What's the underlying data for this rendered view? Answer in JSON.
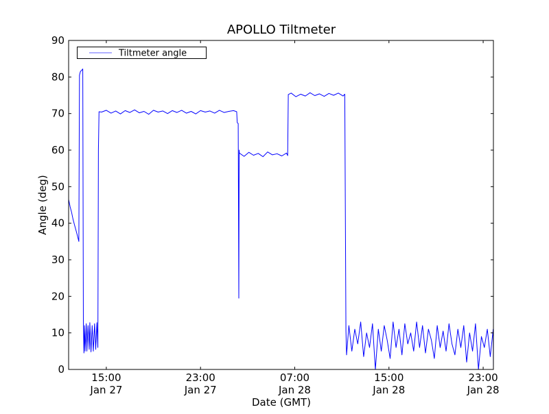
{
  "chart_data": {
    "type": "line",
    "title": "APOLLO Tiltmeter",
    "xlabel": "Date (GMT)",
    "ylabel": "Angle (deg)",
    "x_unit": "hours since Jan 27 00:00",
    "xlim": [
      11.8,
      47.87
    ],
    "ylim": [
      0,
      90
    ],
    "yticks": [
      0,
      10,
      20,
      30,
      40,
      50,
      60,
      70,
      80,
      90
    ],
    "xticks": [
      {
        "value": 15,
        "time": "15:00",
        "date": "Jan 27"
      },
      {
        "value": 23,
        "time": "23:00",
        "date": "Jan 27"
      },
      {
        "value": 31,
        "time": "07:00",
        "date": "Jan 28"
      },
      {
        "value": 39,
        "time": "15:00",
        "date": "Jan 28"
      },
      {
        "value": 47,
        "time": "23:00",
        "date": "Jan 28"
      }
    ],
    "grid": false,
    "legend": {
      "position": "top-left",
      "entries": [
        "Tiltmeter angle"
      ]
    },
    "series": [
      {
        "name": "Tiltmeter angle",
        "color": "#0000ff",
        "points": [
          [
            11.8,
            46.5
          ],
          [
            11.93,
            44.5
          ],
          [
            12.05,
            43
          ],
          [
            12.18,
            41
          ],
          [
            12.3,
            39.5
          ],
          [
            12.43,
            38
          ],
          [
            12.55,
            36.5
          ],
          [
            12.67,
            35
          ],
          [
            12.72,
            80.5
          ],
          [
            12.8,
            81.5
          ],
          [
            12.9,
            81.8
          ],
          [
            13.0,
            82.2
          ],
          [
            13.05,
            12
          ],
          [
            13.1,
            4.5
          ],
          [
            13.15,
            12
          ],
          [
            13.2,
            5
          ],
          [
            13.3,
            12.5
          ],
          [
            13.35,
            5
          ],
          [
            13.45,
            12
          ],
          [
            13.55,
            5.5
          ],
          [
            13.6,
            12.8
          ],
          [
            13.7,
            4.8
          ],
          [
            13.8,
            12
          ],
          [
            13.9,
            5
          ],
          [
            14.0,
            12.5
          ],
          [
            14.1,
            5.5
          ],
          [
            14.2,
            12.8
          ],
          [
            14.28,
            6
          ],
          [
            14.33,
            60
          ],
          [
            14.38,
            70.5
          ],
          [
            14.6,
            70.4
          ],
          [
            15.0,
            70.9
          ],
          [
            15.4,
            70.1
          ],
          [
            15.8,
            70.7
          ],
          [
            16.2,
            69.9
          ],
          [
            16.6,
            70.8
          ],
          [
            17.0,
            70.3
          ],
          [
            17.4,
            71.0
          ],
          [
            17.8,
            70.2
          ],
          [
            18.2,
            70.6
          ],
          [
            18.6,
            69.8
          ],
          [
            19.0,
            70.9
          ],
          [
            19.4,
            70.4
          ],
          [
            19.8,
            70.7
          ],
          [
            20.2,
            70.0
          ],
          [
            20.6,
            70.8
          ],
          [
            21.0,
            70.3
          ],
          [
            21.4,
            70.9
          ],
          [
            21.8,
            70.1
          ],
          [
            22.2,
            70.6
          ],
          [
            22.6,
            69.9
          ],
          [
            23.0,
            70.8
          ],
          [
            23.4,
            70.4
          ],
          [
            23.8,
            70.7
          ],
          [
            24.2,
            70.1
          ],
          [
            24.6,
            70.9
          ],
          [
            25.0,
            70.3
          ],
          [
            25.4,
            70.6
          ],
          [
            25.8,
            70.8
          ],
          [
            26.07,
            70.5
          ],
          [
            26.12,
            67.5
          ],
          [
            26.2,
            67.3
          ],
          [
            26.25,
            19.5
          ],
          [
            26.28,
            60
          ],
          [
            26.3,
            59.2
          ],
          [
            26.7,
            58.3
          ],
          [
            27.1,
            59.4
          ],
          [
            27.5,
            58.6
          ],
          [
            27.9,
            59.1
          ],
          [
            28.3,
            58.2
          ],
          [
            28.7,
            59.5
          ],
          [
            29.1,
            58.7
          ],
          [
            29.5,
            59.0
          ],
          [
            29.9,
            58.4
          ],
          [
            30.3,
            59.2
          ],
          [
            30.4,
            58.5
          ],
          [
            30.45,
            75.2
          ],
          [
            30.7,
            75.6
          ],
          [
            31.1,
            74.6
          ],
          [
            31.5,
            75.3
          ],
          [
            31.9,
            74.8
          ],
          [
            32.3,
            75.7
          ],
          [
            32.7,
            74.9
          ],
          [
            33.1,
            75.4
          ],
          [
            33.5,
            74.7
          ],
          [
            33.9,
            75.5
          ],
          [
            34.3,
            75.0
          ],
          [
            34.7,
            75.6
          ],
          [
            35.1,
            74.8
          ],
          [
            35.25,
            75.3
          ],
          [
            35.35,
            10.5
          ],
          [
            35.4,
            4
          ],
          [
            35.6,
            12
          ],
          [
            35.85,
            5
          ],
          [
            36.1,
            11
          ],
          [
            36.35,
            7
          ],
          [
            36.6,
            13
          ],
          [
            36.85,
            3.5
          ],
          [
            37.1,
            10
          ],
          [
            37.35,
            6
          ],
          [
            37.6,
            12.5
          ],
          [
            37.85,
            0
          ],
          [
            38.1,
            11
          ],
          [
            38.35,
            5
          ],
          [
            38.6,
            12
          ],
          [
            38.85,
            8
          ],
          [
            39.1,
            3
          ],
          [
            39.35,
            13
          ],
          [
            39.6,
            6
          ],
          [
            39.85,
            11
          ],
          [
            40.1,
            4
          ],
          [
            40.35,
            12.5
          ],
          [
            40.6,
            7
          ],
          [
            40.85,
            10
          ],
          [
            41.1,
            5
          ],
          [
            41.35,
            13
          ],
          [
            41.6,
            6
          ],
          [
            41.85,
            12
          ],
          [
            42.1,
            4.5
          ],
          [
            42.35,
            11
          ],
          [
            42.6,
            8
          ],
          [
            42.85,
            3
          ],
          [
            43.1,
            12
          ],
          [
            43.35,
            6
          ],
          [
            43.6,
            10.5
          ],
          [
            43.85,
            5
          ],
          [
            44.1,
            12.5
          ],
          [
            44.35,
            7
          ],
          [
            44.6,
            4
          ],
          [
            44.85,
            11
          ],
          [
            45.1,
            6
          ],
          [
            45.35,
            12
          ],
          [
            45.6,
            2
          ],
          [
            45.85,
            10
          ],
          [
            46.1,
            5
          ],
          [
            46.35,
            12.5
          ],
          [
            46.6,
            0
          ],
          [
            46.85,
            9
          ],
          [
            47.1,
            6
          ],
          [
            47.35,
            11
          ],
          [
            47.6,
            3.5
          ],
          [
            47.85,
            11
          ],
          [
            47.87,
            0
          ]
        ]
      }
    ]
  }
}
